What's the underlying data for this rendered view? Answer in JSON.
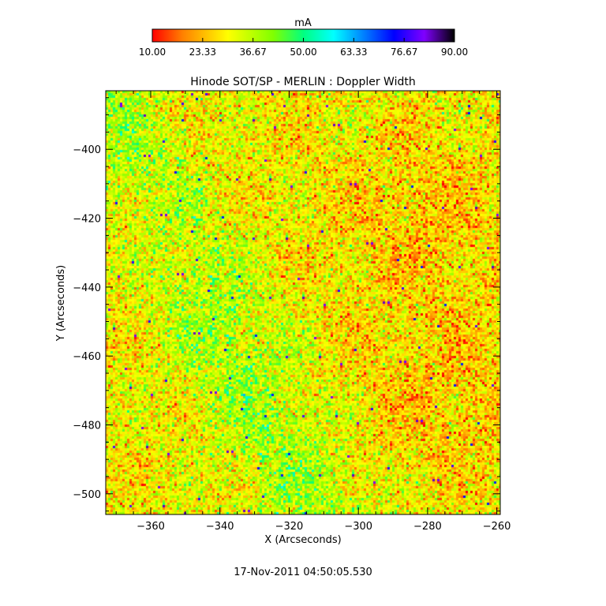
{
  "chart_data": {
    "type": "heatmap",
    "title": "Hinode SOT/SP - MERLIN : Doppler Width",
    "xlabel": "X (Arcseconds)",
    "ylabel": "Y (Arcseconds)",
    "xlim": [
      -373,
      -259
    ],
    "ylim": [
      -506,
      -383
    ],
    "xticks": [
      -360,
      -340,
      -320,
      -300,
      -280,
      -260
    ],
    "yticks": [
      -400,
      -420,
      -440,
      -460,
      -480,
      -500
    ],
    "colorbar": {
      "label": "mA",
      "range": [
        10.0,
        90.0
      ],
      "ticks": [
        "10.00",
        "23.33",
        "36.67",
        "50.00",
        "63.33",
        "76.67",
        "90.00"
      ],
      "colormap": [
        "#ff0000",
        "#ff8000",
        "#ffff00",
        "#80ff00",
        "#00ff80",
        "#00ffff",
        "#0080ff",
        "#0000ff",
        "#8000ff",
        "#000000"
      ]
    },
    "field_description": "granular speckle of Doppler width, mostly 18-45 mA; orange-red patches at upper-left, upper-right and lower-right, greener/yellow region along the center-left diagonal",
    "footer": "17-Nov-2011 04:50:05.530"
  }
}
